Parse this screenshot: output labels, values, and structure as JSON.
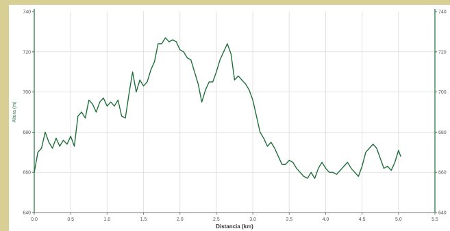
{
  "chart_data": {
    "type": "line",
    "xlabel": "Distancia (km)",
    "ylabel": "Altura (m)",
    "xlim": [
      0.0,
      5.5
    ],
    "ylim": [
      640,
      740
    ],
    "x_ticks": [
      "0.0",
      "0.5",
      "1.0",
      "1.5",
      "2.0",
      "2.5",
      "3.0",
      "3.5",
      "4.0",
      "4.5",
      "5.0",
      "5.5"
    ],
    "y_ticks_left": [
      "640",
      "660",
      "680",
      "700",
      "720",
      "740"
    ],
    "y_ticks_right": [
      "640",
      "660",
      "680",
      "700",
      "720",
      "740"
    ],
    "grid": true,
    "line_color": "#1f6e3a",
    "series": [
      {
        "x": [
          0.0,
          0.05,
          0.1,
          0.15,
          0.2,
          0.25,
          0.3,
          0.35,
          0.4,
          0.45,
          0.5,
          0.55,
          0.6,
          0.65,
          0.7,
          0.75,
          0.8,
          0.85,
          0.9,
          0.95,
          1.0,
          1.05,
          1.1,
          1.15,
          1.2,
          1.25,
          1.3,
          1.35,
          1.4,
          1.45,
          1.5,
          1.55,
          1.6,
          1.65,
          1.7,
          1.75,
          1.8,
          1.85,
          1.9,
          1.95,
          2.0,
          2.05,
          2.1,
          2.15,
          2.2,
          2.25,
          2.3,
          2.35,
          2.4,
          2.45,
          2.5,
          2.55,
          2.6,
          2.65,
          2.7,
          2.75,
          2.8,
          2.85,
          2.9,
          2.95,
          3.0,
          3.05,
          3.1,
          3.15,
          3.2,
          3.25,
          3.3,
          3.35,
          3.4,
          3.45,
          3.5,
          3.55,
          3.6,
          3.65,
          3.7,
          3.75,
          3.8,
          3.85,
          3.9,
          3.95,
          4.0,
          4.05,
          4.1,
          4.15,
          4.2,
          4.25,
          4.3,
          4.35,
          4.4,
          4.45,
          4.5,
          4.55,
          4.6,
          4.65,
          4.7,
          4.75,
          4.8,
          4.85,
          4.9,
          4.95,
          5.0,
          5.03
        ],
        "y": [
          660,
          670,
          672,
          680,
          675,
          672,
          677,
          673,
          676,
          674,
          678,
          673,
          688,
          690,
          687,
          696,
          694,
          690,
          695,
          697,
          693,
          695,
          693,
          696,
          688,
          687,
          699,
          710,
          700,
          706,
          703,
          705,
          711,
          715,
          724,
          724,
          727,
          725,
          726,
          725,
          721,
          720,
          717,
          716,
          710,
          704,
          695,
          701,
          705,
          705,
          710,
          716,
          720,
          724,
          719,
          706,
          708,
          706,
          704,
          701,
          696,
          688,
          680,
          677,
          673,
          675,
          672,
          668,
          664,
          664,
          666,
          665,
          662,
          660,
          658,
          657,
          660,
          657,
          662,
          665,
          662,
          660,
          660,
          659,
          661,
          663,
          665,
          662,
          660,
          658,
          663,
          670,
          672,
          674,
          672,
          667,
          662,
          663,
          661,
          665,
          671,
          668
        ]
      }
    ]
  }
}
